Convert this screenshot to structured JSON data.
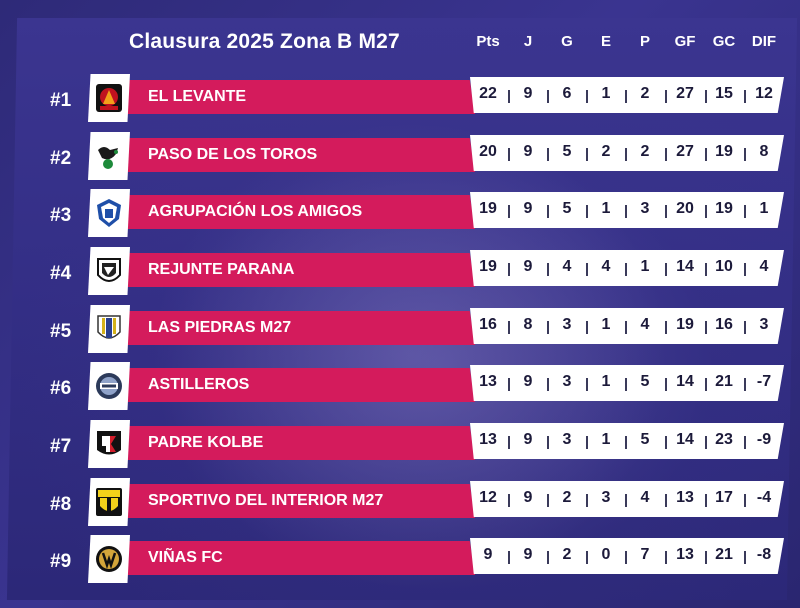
{
  "title": "Clausura 2025 Zona B M27",
  "columns": [
    "Pts",
    "J",
    "G",
    "E",
    "P",
    "GF",
    "GC",
    "DIF"
  ],
  "colors": {
    "name_bar": "#d41b5c",
    "background": "#332e85",
    "stat_bar": "#ffffff"
  },
  "rows": [
    {
      "rank": "#1",
      "team": "EL LEVANTE",
      "logo": "el-levante-crest-icon",
      "stats": [
        "22",
        "9",
        "6",
        "1",
        "2",
        "27",
        "15",
        "12"
      ]
    },
    {
      "rank": "#2",
      "team": "PASO DE LOS TOROS",
      "logo": "paso-de-los-toros-crest-icon",
      "stats": [
        "20",
        "9",
        "5",
        "2",
        "2",
        "27",
        "19",
        "8"
      ]
    },
    {
      "rank": "#3",
      "team": "AGRUPACIÓN LOS AMIGOS",
      "logo": "agrupacion-los-amigos-crest-icon",
      "stats": [
        "19",
        "9",
        "5",
        "1",
        "3",
        "20",
        "19",
        "1"
      ]
    },
    {
      "rank": "#4",
      "team": "REJUNTE PARANA",
      "logo": "rejunte-parana-crest-icon",
      "stats": [
        "19",
        "9",
        "4",
        "4",
        "1",
        "14",
        "10",
        "4"
      ]
    },
    {
      "rank": "#5",
      "team": "LAS PIEDRAS M27",
      "logo": "las-piedras-crest-icon",
      "stats": [
        "16",
        "8",
        "3",
        "1",
        "4",
        "19",
        "16",
        "3"
      ]
    },
    {
      "rank": "#6",
      "team": "ASTILLEROS",
      "logo": "astilleros-crest-icon",
      "stats": [
        "13",
        "9",
        "3",
        "1",
        "5",
        "14",
        "21",
        "-7"
      ]
    },
    {
      "rank": "#7",
      "team": "PADRE KOLBE",
      "logo": "padre-kolbe-crest-icon",
      "stats": [
        "13",
        "9",
        "3",
        "1",
        "5",
        "14",
        "23",
        "-9"
      ]
    },
    {
      "rank": "#8",
      "team": "SPORTIVO DEL INTERIOR M27",
      "logo": "sportivo-del-interior-crest-icon",
      "stats": [
        "12",
        "9",
        "2",
        "3",
        "4",
        "13",
        "17",
        "-4"
      ]
    },
    {
      "rank": "#9",
      "team": "VIÑAS FC",
      "logo": "vinas-fc-crest-icon",
      "stats": [
        "9",
        "9",
        "2",
        "0",
        "7",
        "13",
        "21",
        "-8"
      ]
    }
  ]
}
